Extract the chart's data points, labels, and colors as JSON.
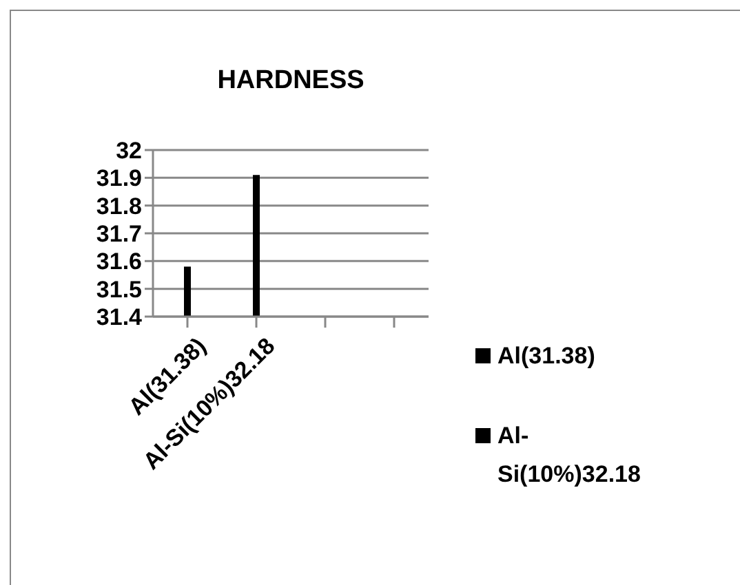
{
  "chart_data": {
    "type": "bar",
    "title": "HARDNESS",
    "categories": [
      "Al(31.38)",
      "Al-Si(10%)32.18",
      null,
      null
    ],
    "series": [
      {
        "name": "Al(31.38)",
        "color": "#000000",
        "values": [
          31.58,
          null,
          null,
          null
        ]
      },
      {
        "name": "Al-Si(10%)32.18",
        "color": "#000000",
        "values": [
          null,
          31.91,
          null,
          null
        ]
      }
    ],
    "stacked": true,
    "ylim": [
      31.4,
      32
    ],
    "yticks": [
      31.4,
      31.5,
      31.6,
      31.7,
      31.8,
      31.9,
      32
    ],
    "grid": "y",
    "legend": "right"
  }
}
